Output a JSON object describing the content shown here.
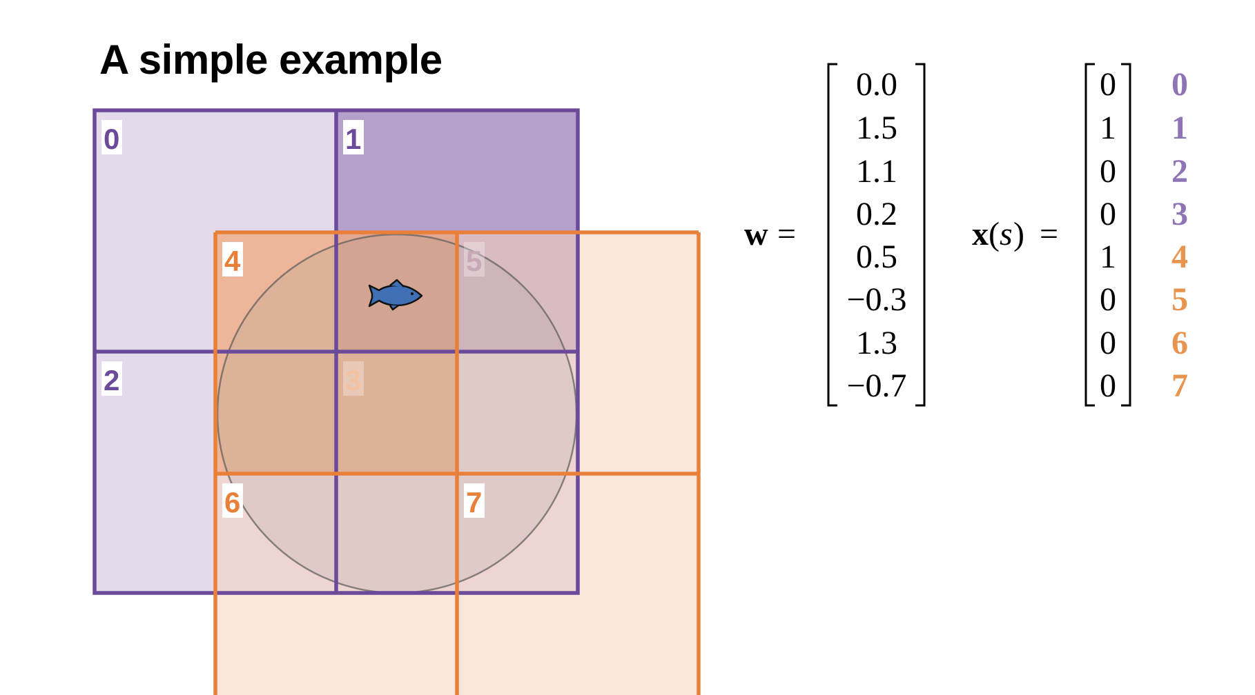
{
  "title": "A simple example",
  "colors": {
    "purple": "#6b4a9a",
    "orange": "#e8803a",
    "fish": "#3f6fb5"
  },
  "tilings": [
    {
      "name": "purple",
      "tiles": [
        "0",
        "1",
        "2",
        "3"
      ],
      "active_tile": "1"
    },
    {
      "name": "orange",
      "tiles": [
        "4",
        "5",
        "6",
        "7"
      ],
      "active_tile": "4"
    }
  ],
  "agent_icon": "fish-icon",
  "weights": {
    "label": "w",
    "equals": "=",
    "values": [
      "0.0",
      "1.5",
      "1.1",
      "0.2",
      "0.5",
      "−0.3",
      "1.3",
      "−0.7"
    ]
  },
  "features": {
    "label_x": "x",
    "label_s": "s",
    "paren_open": "(",
    "paren_close": ")",
    "equals": "=",
    "values": [
      "0",
      "1",
      "0",
      "0",
      "1",
      "0",
      "0",
      "0"
    ],
    "indices": [
      "0",
      "1",
      "2",
      "3",
      "4",
      "5",
      "6",
      "7"
    ]
  }
}
